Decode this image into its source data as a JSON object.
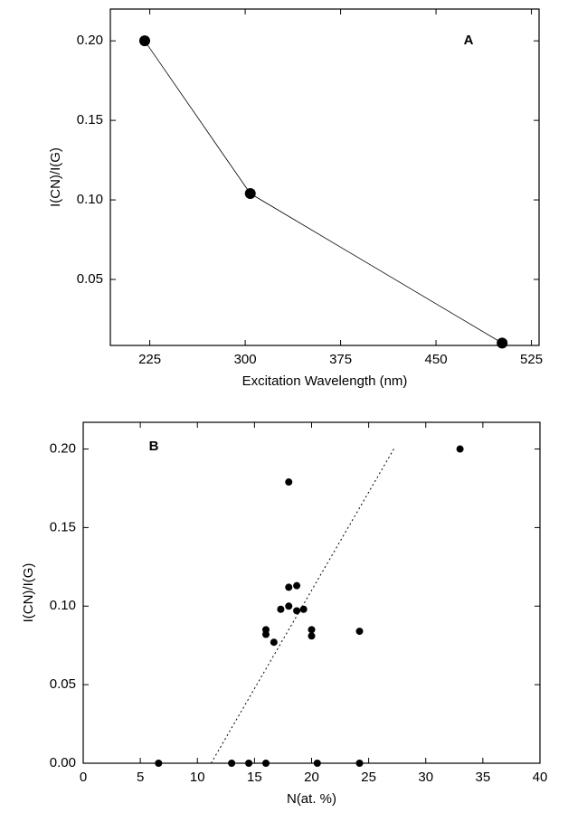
{
  "chart_data": [
    {
      "type": "line",
      "title": "A",
      "xlabel": "Excitation Wavelength (nm)",
      "ylabel": "I(CN)/I(G)",
      "x": [
        221,
        304,
        502
      ],
      "values": [
        0.2,
        0.104,
        0.01
      ],
      "color": "#000000",
      "xlim": [
        194,
        531
      ],
      "xticks": [
        225,
        300,
        375,
        450,
        525
      ],
      "ylim": [
        0.0085,
        0.22
      ],
      "yticks": [
        {
          "value": 0.05,
          "label": "0.05"
        },
        {
          "value": 0.1,
          "label": "0.10"
        },
        {
          "value": 0.15,
          "label": "0.15"
        },
        {
          "value": 0.2,
          "label": "0.20"
        }
      ]
    },
    {
      "type": "scatter",
      "title": "B",
      "xlabel": "N(at. %)",
      "ylabel": "I(CN)/I(G)",
      "x": [
        6.6,
        13,
        14.5,
        16,
        20.5,
        24.2,
        16,
        16,
        16.7,
        17.3,
        18,
        18,
        18,
        18.7,
        18.7,
        19.3,
        20,
        20,
        24.2,
        33
      ],
      "values": [
        0,
        0,
        0,
        0,
        0,
        0,
        0.085,
        0.082,
        0.077,
        0.098,
        0.1,
        0.112,
        0.179,
        0.113,
        0.097,
        0.098,
        0.085,
        0.081,
        0.084,
        0.2
      ],
      "color": "#000000",
      "fit_line": {
        "x": [
          11.2,
          27.2
        ],
        "values": [
          0,
          0.2
        ]
      },
      "xlim": [
        0,
        40
      ],
      "xticks": [
        0,
        5,
        10,
        15,
        20,
        25,
        30,
        35,
        40
      ],
      "ylim": [
        0,
        0.217
      ],
      "yticks": [
        {
          "value": 0,
          "label": "0.00"
        },
        {
          "value": 0.05,
          "label": "0.05"
        },
        {
          "value": 0.1,
          "label": "0.10"
        },
        {
          "value": 0.15,
          "label": "0.15"
        },
        {
          "value": 0.2,
          "label": "0.20"
        }
      ]
    }
  ]
}
